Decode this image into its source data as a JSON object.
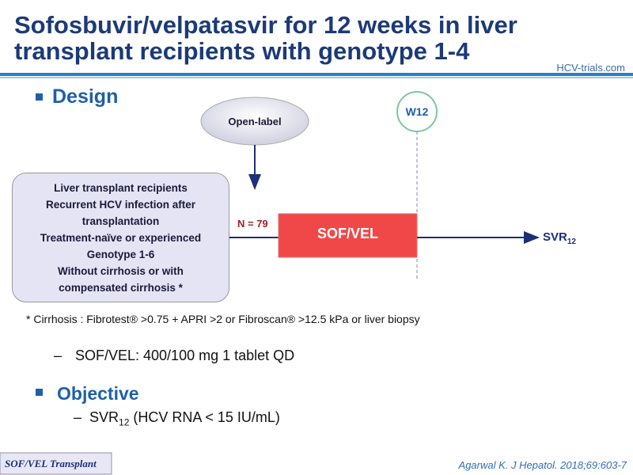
{
  "header": {
    "title_lines": [
      "Sofosbuvir/velpatasvir for 12 weeks in liver",
      "transplant recipients with genotype 1-4"
    ],
    "logo": "HCV-trials.com"
  },
  "design": {
    "heading": "Design",
    "open_label": "Open-label",
    "week_marker": "W12",
    "population": [
      "Liver transplant recipients",
      "Recurrent HCV infection after",
      "transplantation",
      "Treatment-naïve or experienced",
      "Genotype 1-6",
      "Without cirrhosis or with",
      "compensated cirrhosis *"
    ],
    "n": "N = 79",
    "arm": "SOF/VEL",
    "outcome": {
      "main": "SVR",
      "sub": "12"
    },
    "footnote": "* Cirrhosis : Fibrotest® >0.75 + APRI >2 or Fibroscan® >12.5 kPa or liver biopsy",
    "dose": "SOF/VEL: 400/100 mg 1 tablet QD"
  },
  "objective": {
    "heading": "Objective",
    "text": {
      "main": "SVR",
      "sub": "12",
      "rest": " (HCV RNA < 15 IU/mL)"
    }
  },
  "footer": {
    "tag": "SOF/VEL Transplant",
    "citation": "Agarwal K. J Hepatol. 2018;69:603-7"
  }
}
